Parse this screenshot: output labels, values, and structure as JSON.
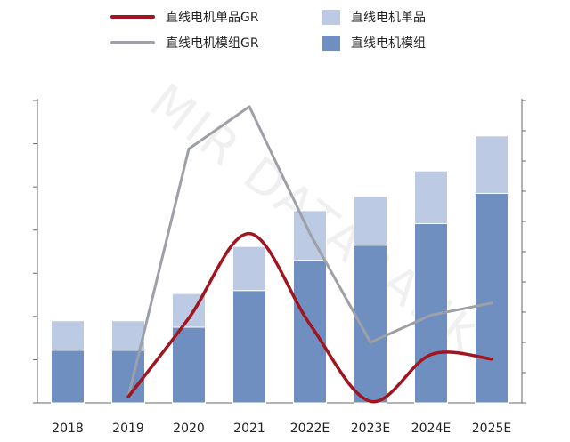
{
  "legend": {
    "single_gr": "直线电机单品GR",
    "module_gr": "直线电机模组GR",
    "single": "直线电机单品",
    "module": "直线电机模组"
  },
  "watermark": "MIR DATABANK",
  "colors": {
    "single": "#bccae3",
    "module": "#6f8fc0",
    "single_gr": "#a01520",
    "module_gr": "#9ea0a8"
  },
  "chart_data": {
    "type": "bar",
    "categories": [
      "2018",
      "2019",
      "2020",
      "2021",
      "2022E",
      "2023E",
      "2024E",
      "2025E"
    ],
    "stacked": true,
    "left_axis": {
      "ylim": [
        0,
        7
      ],
      "tick_step": 1,
      "tick_labels_shown": false
    },
    "right_axis": {
      "ylim": [
        0,
        10
      ],
      "tick_step": 1,
      "tick_labels_shown": false
    },
    "series": [
      {
        "name": "直线电机模组",
        "kind": "bar",
        "axis": "left",
        "values": [
          1.22,
          1.22,
          1.75,
          2.6,
          3.3,
          3.65,
          4.15,
          4.85
        ]
      },
      {
        "name": "直线电机单品",
        "kind": "bar",
        "axis": "left",
        "values": [
          0.68,
          0.68,
          0.78,
          1.02,
          1.15,
          1.13,
          1.22,
          1.33
        ]
      },
      {
        "name": "直线电机单品GR",
        "kind": "line",
        "axis": "right",
        "smooth": true,
        "values": [
          null,
          0.2,
          2.8,
          5.6,
          2.6,
          0.05,
          1.6,
          1.45
        ]
      },
      {
        "name": "直线电机模组GR",
        "kind": "line",
        "axis": "right",
        "smooth": false,
        "values": [
          null,
          0.2,
          8.4,
          9.8,
          5.6,
          2.0,
          2.9,
          3.3
        ]
      }
    ],
    "xlabel": "",
    "ylabel": ""
  }
}
